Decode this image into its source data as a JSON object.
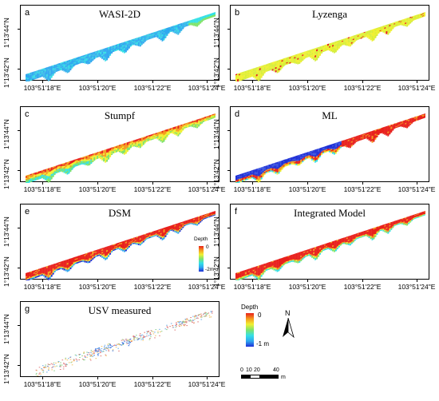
{
  "panels": [
    {
      "letter": "a",
      "title": "WASI-2D",
      "scheme": "wasi"
    },
    {
      "letter": "b",
      "title": "Lyzenga",
      "scheme": "lyzenga"
    },
    {
      "letter": "c",
      "title": "Stumpf",
      "scheme": "stumpf"
    },
    {
      "letter": "d",
      "title": "ML",
      "scheme": "ml"
    },
    {
      "letter": "e",
      "title": "DSM",
      "scheme": "dsm"
    },
    {
      "letter": "f",
      "title": "Integrated Model",
      "scheme": "integrated"
    },
    {
      "letter": "g",
      "title": "USV measured",
      "scheme": "usv"
    }
  ],
  "axes": {
    "lat_labels": [
      "1°13'44\"N",
      "1°13'42\"N"
    ],
    "lon_labels": [
      "103°51'18\"E",
      "103°51'20\"E",
      "103°51'22\"E",
      "103°51'24\"E"
    ]
  },
  "legend_inset": {
    "title": "Depth",
    "max": "0",
    "min": "-2m"
  },
  "legend_main": {
    "title": "Depth",
    "max": "0",
    "min": "-1 m"
  },
  "north_arrow": {
    "label": "N"
  },
  "scale_bar": {
    "ticks": [
      "0",
      "10",
      "20",
      "40"
    ],
    "unit": "m"
  },
  "colors": {
    "deep": "#1f2fd6",
    "shallow_blue": "#2fa8f0",
    "cyan": "#34e0e6",
    "green": "#7fe36a",
    "yellow": "#f0f032",
    "orange": "#f59a1e",
    "red": "#e8201c",
    "frame": "#000000"
  }
}
